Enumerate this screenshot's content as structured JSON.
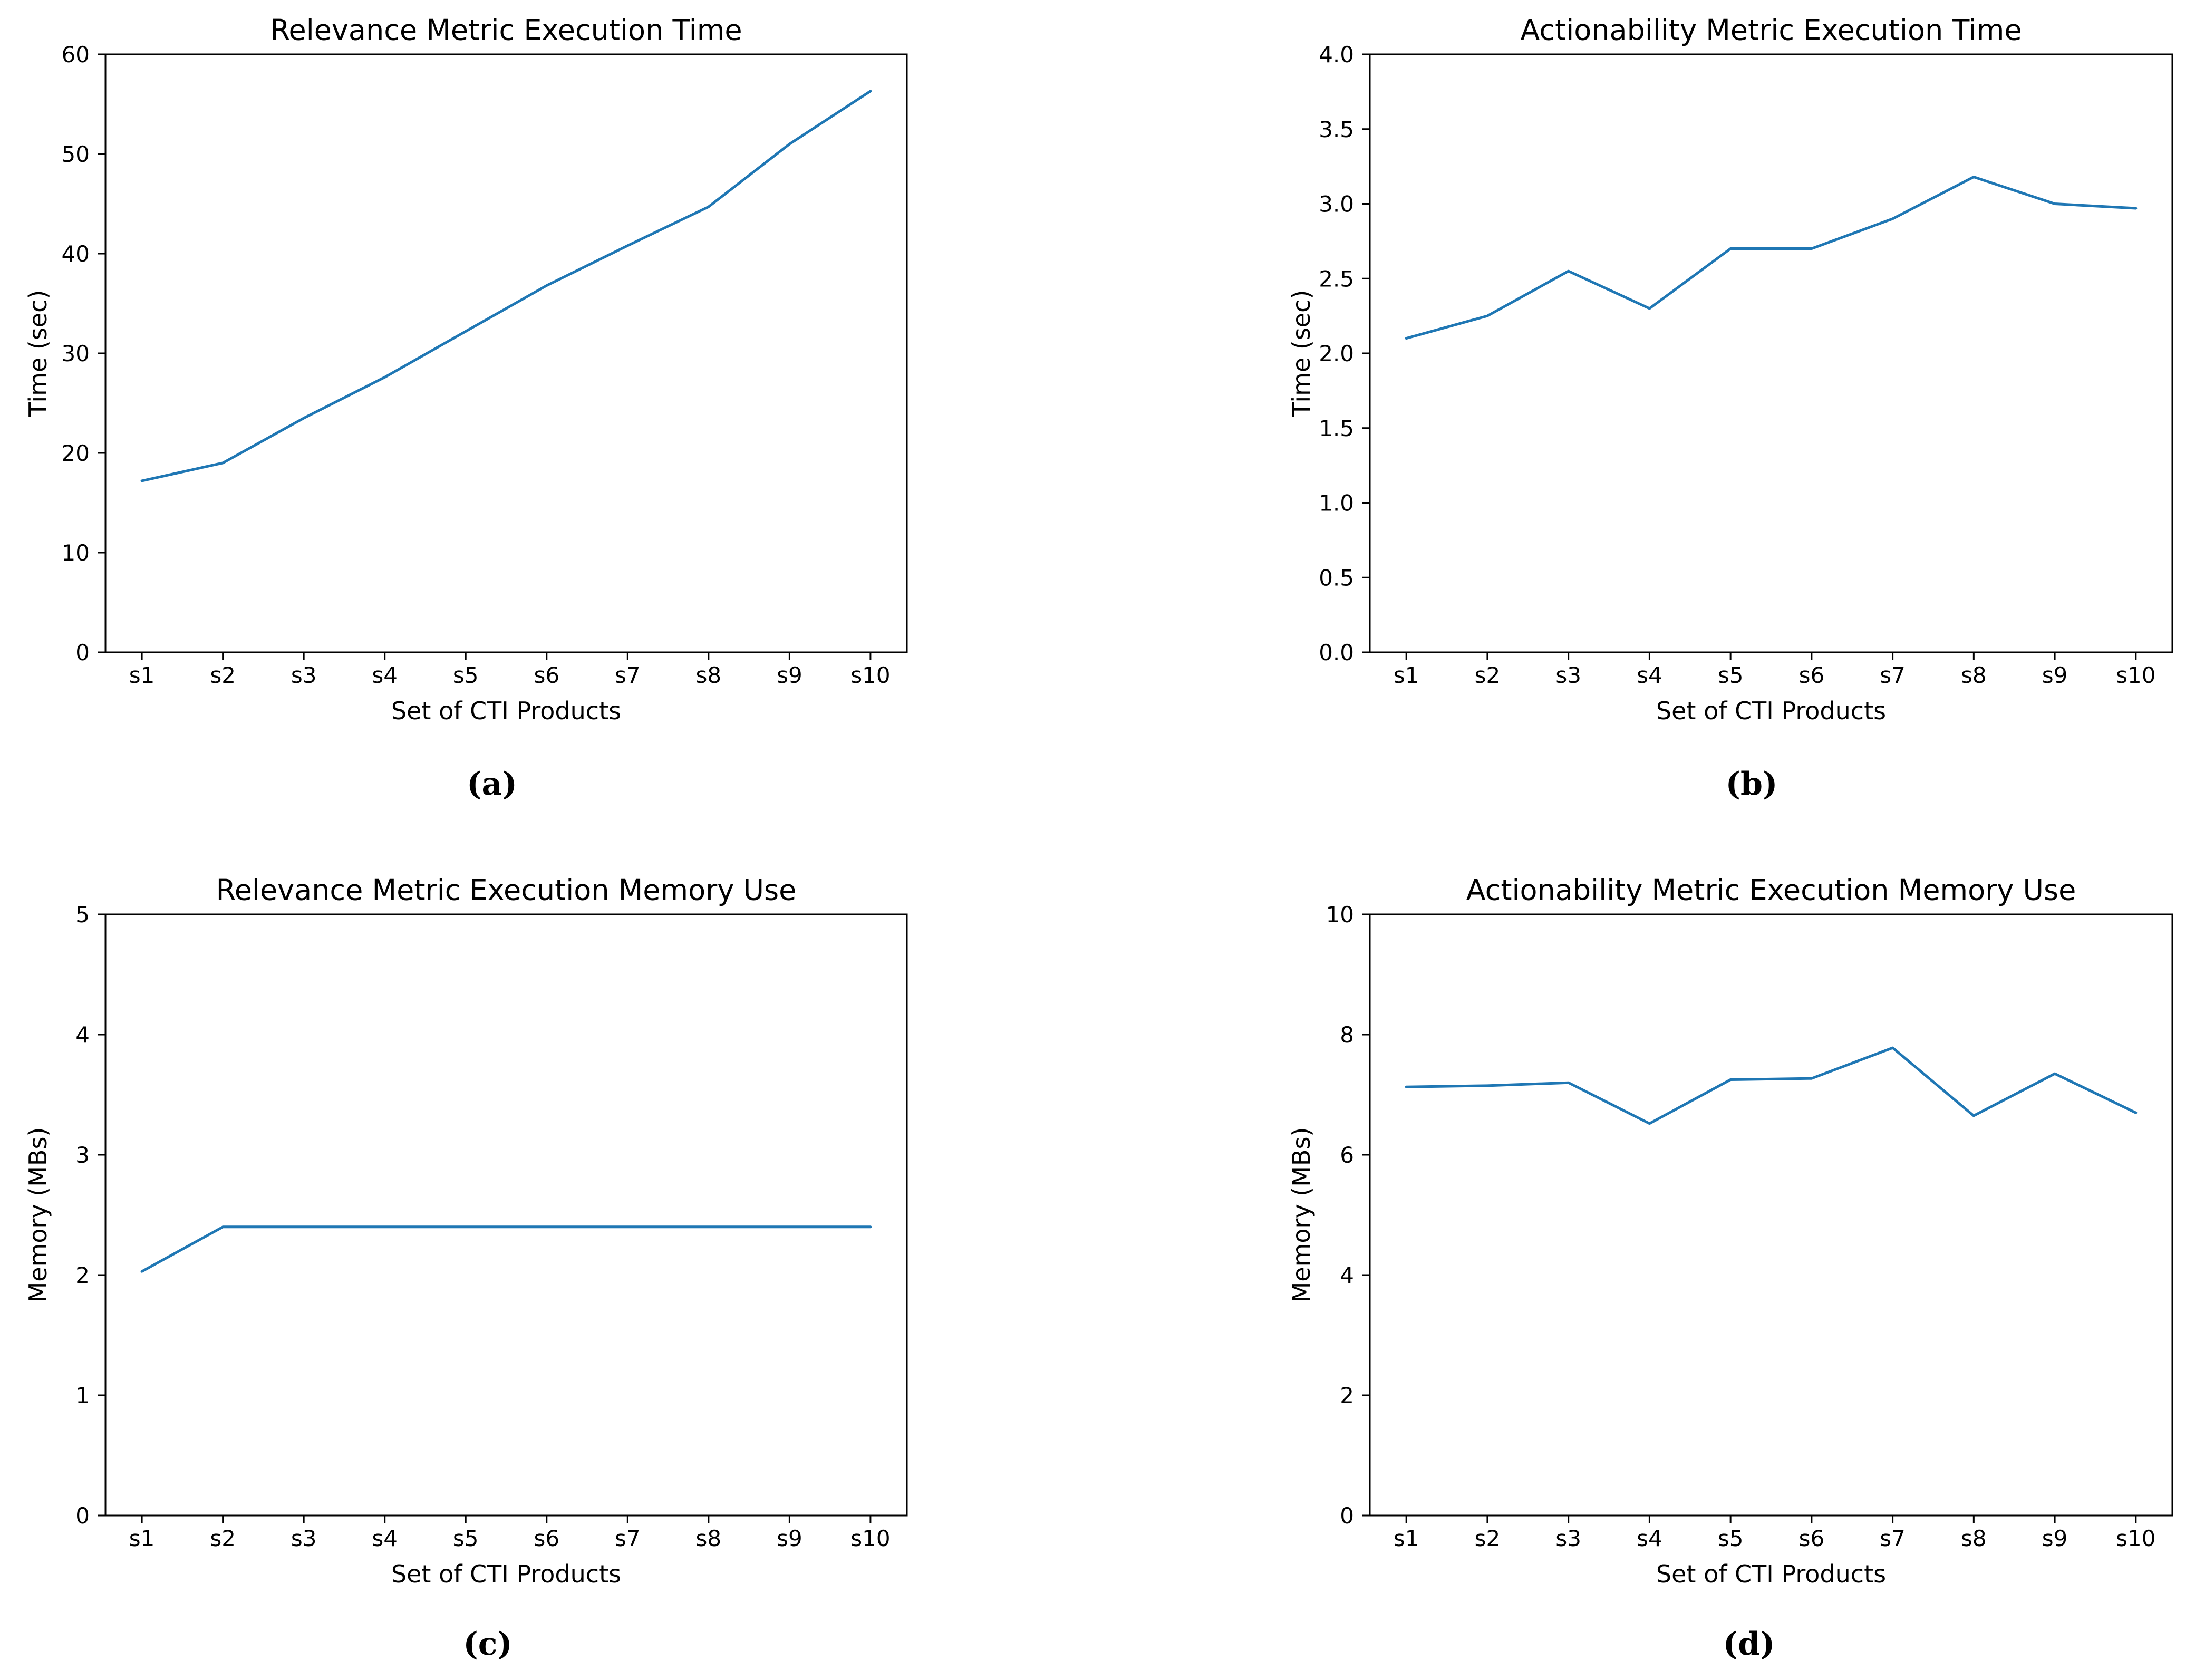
{
  "page": {
    "background": "#ffffff",
    "axis_color": "#000000",
    "line_color": "#1f77b4"
  },
  "chart_data": [
    {
      "type": "line",
      "panel": "a",
      "title": "Relevance Metric Execution Time",
      "xlabel": "Set of CTI Products",
      "ylabel": "Time (sec)",
      "caption": "(a)",
      "categories": [
        "s1",
        "s2",
        "s3",
        "s4",
        "s5",
        "s6",
        "s7",
        "s8",
        "s9",
        "s10"
      ],
      "values": [
        17.2,
        19.0,
        23.5,
        27.6,
        32.2,
        36.8,
        40.8,
        44.7,
        51.0,
        56.3
      ],
      "ylim": [
        0,
        60
      ],
      "yticks": [
        0,
        10,
        20,
        30,
        40,
        50,
        60
      ],
      "ytick_labels": [
        "0",
        "10",
        "20",
        "30",
        "40",
        "50",
        "60"
      ],
      "grid": false,
      "legend": "none",
      "line_color": "#1f77b4"
    },
    {
      "type": "line",
      "panel": "b",
      "title": "Actionability Metric Execution Time",
      "xlabel": "Set of CTI Products",
      "ylabel": "Time (sec)",
      "caption": "(b)",
      "categories": [
        "s1",
        "s2",
        "s3",
        "s4",
        "s5",
        "s6",
        "s7",
        "s8",
        "s9",
        "s10"
      ],
      "values": [
        2.1,
        2.25,
        2.55,
        2.3,
        2.7,
        2.7,
        2.9,
        3.18,
        3.0,
        2.97
      ],
      "ylim": [
        0,
        4.0
      ],
      "yticks": [
        0.0,
        0.5,
        1.0,
        1.5,
        2.0,
        2.5,
        3.0,
        3.5,
        4.0
      ],
      "ytick_labels": [
        "0.0",
        "0.5",
        "1.0",
        "1.5",
        "2.0",
        "2.5",
        "3.0",
        "3.5",
        "4.0"
      ],
      "grid": false,
      "legend": "none",
      "line_color": "#1f77b4"
    },
    {
      "type": "line",
      "panel": "c",
      "title": "Relevance Metric Execution Memory Use",
      "xlabel": "Set of CTI Products",
      "ylabel": "Memory (MBs)",
      "caption": "(c)",
      "categories": [
        "s1",
        "s2",
        "s3",
        "s4",
        "s5",
        "s6",
        "s7",
        "s8",
        "s9",
        "s10"
      ],
      "values": [
        2.03,
        2.4,
        2.4,
        2.4,
        2.4,
        2.4,
        2.4,
        2.4,
        2.4,
        2.4
      ],
      "ylim": [
        0,
        5
      ],
      "yticks": [
        0,
        1,
        2,
        3,
        4,
        5
      ],
      "ytick_labels": [
        "0",
        "1",
        "2",
        "3",
        "4",
        "5"
      ],
      "grid": false,
      "legend": "none",
      "line_color": "#1f77b4"
    },
    {
      "type": "line",
      "panel": "d",
      "title": "Actionability Metric Execution Memory Use",
      "xlabel": "Set of CTI Products",
      "ylabel": "Memory (MBs)",
      "caption": "(d)",
      "categories": [
        "s1",
        "s2",
        "s3",
        "s4",
        "s5",
        "s6",
        "s7",
        "s8",
        "s9",
        "s10"
      ],
      "values": [
        7.13,
        7.15,
        7.2,
        6.52,
        7.25,
        7.27,
        7.78,
        6.65,
        7.35,
        6.7
      ],
      "ylim": [
        0,
        10
      ],
      "yticks": [
        0,
        2,
        4,
        6,
        8,
        10
      ],
      "ytick_labels": [
        "0",
        "2",
        "4",
        "6",
        "8",
        "10"
      ],
      "grid": false,
      "legend": "none",
      "line_color": "#1f77b4"
    }
  ]
}
